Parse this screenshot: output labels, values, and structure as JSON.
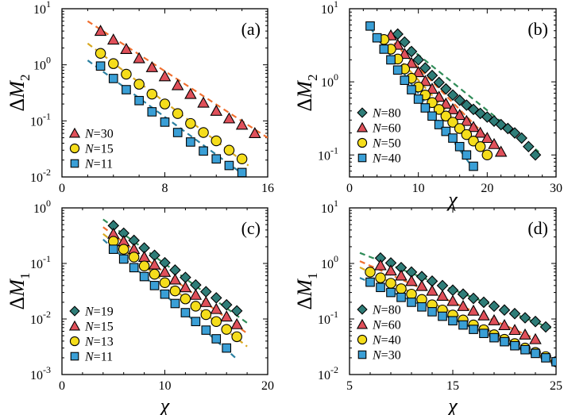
{
  "colors": {
    "triangle": "#e0505a",
    "circle": "#f5dd1b",
    "square": "#3a9fd6",
    "diamond": "#2f7d78",
    "fit_triangle": "#f07030",
    "fit_circle": "#d8a820",
    "fit_square": "#2a7fa0",
    "fit_diamond": "#2e8b57"
  },
  "chart_data": [
    {
      "id": "a",
      "type": "scatter",
      "panel_label": "(a)",
      "xlabel": "",
      "ylabel_main": "ΔM",
      "ylabel_sub": "2",
      "ylabel": "ΔM2",
      "yscale": "log",
      "xlim": [
        0,
        16
      ],
      "ylim": [
        0.01,
        10
      ],
      "xticks": [
        {
          "v": 0,
          "t": "0"
        },
        {
          "v": 8,
          "t": "8"
        },
        {
          "v": 16,
          "t": "16"
        }
      ],
      "yticks": [
        {
          "v": 0.01,
          "b": "10",
          "e": "-2"
        },
        {
          "v": 0.1,
          "b": "10",
          "e": "-1"
        },
        {
          "v": 1,
          "b": "10",
          "e": "0"
        },
        {
          "v": 10,
          "b": "10",
          "e": "1"
        }
      ],
      "legend_position": "bottom-left",
      "series": [
        {
          "name": "N=30",
          "name_pre": "N",
          "name_val": "=30",
          "marker": "triangle",
          "x": [
            3,
            4,
            5,
            6,
            7,
            8,
            9,
            10,
            11,
            12,
            13,
            14,
            15
          ],
          "y": [
            4.0,
            2.8,
            1.9,
            1.3,
            0.9,
            0.62,
            0.43,
            0.3,
            0.21,
            0.15,
            0.11,
            0.085,
            0.06
          ],
          "fit": [
            [
              2,
              6.0
            ],
            [
              16,
              0.05
            ]
          ]
        },
        {
          "name": "N=15",
          "name_pre": "N",
          "name_val": "=15",
          "marker": "circle",
          "x": [
            3,
            4,
            5,
            6,
            7,
            8,
            9,
            10,
            11,
            12,
            13,
            14
          ],
          "y": [
            1.6,
            1.05,
            0.68,
            0.45,
            0.3,
            0.2,
            0.135,
            0.09,
            0.062,
            0.044,
            0.03,
            0.021
          ],
          "fit": [
            [
              2,
              2.4
            ],
            [
              14.5,
              0.016
            ]
          ]
        },
        {
          "name": "N=11",
          "name_pre": "N",
          "name_val": "=11",
          "marker": "square",
          "x": [
            3,
            4,
            5,
            6,
            7,
            8,
            9,
            10,
            11,
            12,
            13,
            14
          ],
          "y": [
            0.95,
            0.57,
            0.36,
            0.23,
            0.145,
            0.095,
            0.062,
            0.042,
            0.029,
            0.021,
            0.016,
            0.012
          ],
          "fit": [
            [
              2,
              1.2
            ],
            [
              14.5,
              0.0095
            ]
          ]
        }
      ]
    },
    {
      "id": "b",
      "type": "scatter",
      "panel_label": "(b)",
      "xlabel": "χ",
      "ylabel_main": "ΔM",
      "ylabel_sub": "2",
      "ylabel": "ΔM2",
      "yscale": "log",
      "xlim": [
        0,
        30
      ],
      "ylim": [
        0.05,
        10
      ],
      "xticks": [
        {
          "v": 0,
          "t": "0"
        },
        {
          "v": 10,
          "t": "10"
        },
        {
          "v": 20,
          "t": "20"
        },
        {
          "v": 30,
          "t": "30"
        }
      ],
      "yticks": [
        {
          "v": 0.1,
          "b": "10",
          "e": "-1"
        },
        {
          "v": 1,
          "b": "10",
          "e": "0"
        },
        {
          "v": 10,
          "b": "10",
          "e": "1"
        }
      ],
      "legend_position": "bottom-left",
      "series": [
        {
          "name": "N=80",
          "name_pre": "N",
          "name_val": "=80",
          "marker": "diamond",
          "x": [
            7,
            8,
            9,
            10,
            11,
            12,
            13,
            14,
            15,
            16,
            17,
            18,
            19,
            20,
            21,
            22,
            23,
            24,
            25,
            26,
            27
          ],
          "y": [
            4.5,
            3.5,
            2.6,
            2.0,
            1.55,
            1.22,
            0.98,
            0.8,
            0.66,
            0.56,
            0.48,
            0.42,
            0.37,
            0.33,
            0.29,
            0.26,
            0.23,
            0.2,
            0.17,
            0.13,
            0.1
          ],
          "fit": [
            [
              6.5,
              4.3
            ],
            [
              27.5,
              0.11
            ]
          ]
        },
        {
          "name": "N=60",
          "name_pre": "N",
          "name_val": "=60",
          "marker": "triangle",
          "x": [
            6,
            7,
            8,
            9,
            10,
            11,
            12,
            13,
            14,
            15,
            16,
            17,
            18,
            19,
            20,
            21,
            22
          ],
          "y": [
            4.3,
            3.2,
            2.4,
            1.8,
            1.35,
            1.02,
            0.8,
            0.62,
            0.5,
            0.42,
            0.35,
            0.29,
            0.24,
            0.2,
            0.17,
            0.14,
            0.11
          ],
          "fit": [
            [
              5.5,
              4.2
            ],
            [
              22.5,
              0.1
            ]
          ]
        },
        {
          "name": "N=50",
          "name_pre": "N",
          "name_val": "=50",
          "marker": "circle",
          "x": [
            5,
            6,
            7,
            8,
            9,
            10,
            11,
            12,
            13,
            14,
            15,
            16,
            17,
            18,
            19,
            20
          ],
          "y": [
            3.8,
            2.8,
            2.05,
            1.5,
            1.12,
            0.85,
            0.66,
            0.52,
            0.42,
            0.34,
            0.28,
            0.23,
            0.19,
            0.155,
            0.13,
            0.1
          ],
          "fit": [
            [
              5,
              3.5
            ],
            [
              20.5,
              0.085
            ]
          ]
        },
        {
          "name": "N=40",
          "name_pre": "N",
          "name_val": "=40",
          "marker": "square",
          "x": [
            3,
            4,
            5,
            6,
            7,
            8,
            9,
            10,
            11,
            12,
            13,
            14,
            15,
            16,
            17,
            18
          ],
          "y": [
            5.8,
            4.0,
            2.8,
            2.0,
            1.45,
            1.05,
            0.78,
            0.58,
            0.44,
            0.34,
            0.26,
            0.21,
            0.17,
            0.13,
            0.1,
            0.07
          ],
          "fit": [
            [
              3,
              5.5
            ],
            [
              18,
              0.065
            ]
          ]
        }
      ]
    },
    {
      "id": "c",
      "type": "scatter",
      "panel_label": "(c)",
      "xlabel": "χ",
      "ylabel_main": "ΔM",
      "ylabel_sub": "1",
      "ylabel": "ΔM1",
      "yscale": "log",
      "xlim": [
        0,
        20
      ],
      "ylim": [
        0.001,
        1
      ],
      "xticks": [
        {
          "v": 0,
          "t": "0"
        },
        {
          "v": 10,
          "t": "10"
        },
        {
          "v": 20,
          "t": "20"
        }
      ],
      "yticks": [
        {
          "v": 0.001,
          "b": "10",
          "e": "-3"
        },
        {
          "v": 0.01,
          "b": "10",
          "e": "-2"
        },
        {
          "v": 0.1,
          "b": "10",
          "e": "-1"
        },
        {
          "v": 1,
          "b": "10",
          "e": "0"
        }
      ],
      "legend_position": "bottom-left",
      "series": [
        {
          "name": "N=19",
          "name_pre": "N",
          "name_val": "=19",
          "marker": "diamond",
          "x": [
            5,
            6,
            7,
            8,
            9,
            10,
            11,
            12,
            13,
            14,
            15,
            16,
            17
          ],
          "y": [
            0.48,
            0.35,
            0.26,
            0.19,
            0.14,
            0.103,
            0.076,
            0.056,
            0.041,
            0.031,
            0.024,
            0.018,
            0.014
          ],
          "fit": [
            [
              4,
              0.62
            ],
            [
              18,
              0.0085
            ]
          ]
        },
        {
          "name": "N=15",
          "name_pre": "N",
          "name_val": "=15",
          "marker": "triangle",
          "x": [
            5,
            6,
            7,
            8,
            9,
            10,
            11,
            12,
            13,
            14,
            15,
            16,
            17
          ],
          "y": [
            0.34,
            0.25,
            0.18,
            0.13,
            0.095,
            0.07,
            0.051,
            0.037,
            0.027,
            0.02,
            0.015,
            0.011,
            0.008
          ],
          "fit": [
            [
              4,
              0.45
            ],
            [
              18,
              0.0055
            ]
          ]
        },
        {
          "name": "N=13",
          "name_pre": "N",
          "name_val": "=13",
          "marker": "circle",
          "x": [
            5,
            6,
            7,
            8,
            9,
            10,
            11,
            12,
            13,
            14,
            15,
            16,
            17
          ],
          "y": [
            0.25,
            0.18,
            0.13,
            0.09,
            0.064,
            0.045,
            0.032,
            0.023,
            0.017,
            0.012,
            0.009,
            0.0065,
            0.0048
          ],
          "fit": [
            [
              4,
              0.34
            ],
            [
              18,
              0.0032
            ]
          ]
        },
        {
          "name": "N=11",
          "name_pre": "N",
          "name_val": "=11",
          "marker": "square",
          "x": [
            5,
            6,
            7,
            8,
            9,
            10,
            11,
            12,
            13,
            14,
            15,
            16
          ],
          "y": [
            0.18,
            0.12,
            0.084,
            0.058,
            0.04,
            0.028,
            0.019,
            0.013,
            0.009,
            0.0063,
            0.0044,
            0.003
          ],
          "fit": [
            [
              4,
              0.27
            ],
            [
              17,
              0.0019
            ]
          ]
        }
      ]
    },
    {
      "id": "d",
      "type": "scatter",
      "panel_label": "(d)",
      "xlabel": "χ",
      "ylabel_main": "ΔM",
      "ylabel_sub": "1",
      "ylabel": "ΔM1",
      "yscale": "log",
      "xlim": [
        5,
        25
      ],
      "ylim": [
        0.01,
        10
      ],
      "xticks": [
        {
          "v": 5,
          "t": "5"
        },
        {
          "v": 15,
          "t": "15"
        },
        {
          "v": 25,
          "t": "25"
        }
      ],
      "yticks": [
        {
          "v": 0.01,
          "b": "10",
          "e": "-2"
        },
        {
          "v": 0.1,
          "b": "10",
          "e": "-1"
        },
        {
          "v": 1,
          "b": "10",
          "e": "0"
        },
        {
          "v": 10,
          "b": "10",
          "e": "1"
        }
      ],
      "legend_position": "bottom-left",
      "series": [
        {
          "name": "N=80",
          "name_pre": "N",
          "name_val": "=80",
          "marker": "diamond",
          "x": [
            8,
            9,
            10,
            11,
            12,
            13,
            14,
            15,
            16,
            17,
            18,
            19,
            20,
            21,
            22,
            23,
            24
          ],
          "y": [
            1.25,
            1.02,
            0.84,
            0.7,
            0.58,
            0.48,
            0.4,
            0.33,
            0.28,
            0.235,
            0.2,
            0.17,
            0.145,
            0.125,
            0.105,
            0.09,
            0.072
          ],
          "fit": [
            [
              6,
              1.55
            ],
            [
              24.5,
              0.068
            ]
          ]
        },
        {
          "name": "N=60",
          "name_pre": "N",
          "name_val": "=60",
          "marker": "triangle",
          "x": [
            8,
            9,
            10,
            11,
            12,
            13,
            14,
            15,
            16,
            17,
            18,
            19,
            20,
            21,
            22,
            23
          ],
          "y": [
            0.92,
            0.74,
            0.6,
            0.48,
            0.39,
            0.32,
            0.26,
            0.21,
            0.17,
            0.14,
            0.115,
            0.094,
            0.077,
            0.063,
            0.052,
            0.043
          ],
          "fit": [
            [
              6,
              1.1
            ],
            [
              23.5,
              0.04
            ]
          ]
        },
        {
          "name": "N=40",
          "name_pre": "N",
          "name_val": "=40",
          "marker": "circle",
          "x": [
            7,
            8,
            9,
            10,
            11,
            12,
            13,
            14,
            15,
            16,
            17,
            18,
            19,
            20,
            21,
            22,
            23,
            24,
            25
          ],
          "y": [
            0.7,
            0.55,
            0.44,
            0.35,
            0.28,
            0.225,
            0.18,
            0.145,
            0.118,
            0.096,
            0.078,
            0.064,
            0.052,
            0.043,
            0.036,
            0.03,
            0.025,
            0.021,
            0.017
          ],
          "fit": [
            [
              6,
              0.85
            ],
            [
              25,
              0.016
            ]
          ]
        },
        {
          "name": "N=30",
          "name_pre": "N",
          "name_val": "=30",
          "marker": "square",
          "x": [
            7,
            8,
            9,
            10,
            11,
            12,
            13,
            14,
            15,
            16,
            17,
            18,
            19,
            20,
            21,
            22,
            23,
            24,
            25
          ],
          "y": [
            0.46,
            0.37,
            0.3,
            0.245,
            0.2,
            0.165,
            0.135,
            0.112,
            0.093,
            0.078,
            0.065,
            0.055,
            0.046,
            0.039,
            0.033,
            0.028,
            0.024,
            0.02,
            0.017
          ],
          "fit": [
            [
              6,
              0.55
            ],
            [
              25,
              0.015
            ]
          ]
        }
      ]
    }
  ]
}
